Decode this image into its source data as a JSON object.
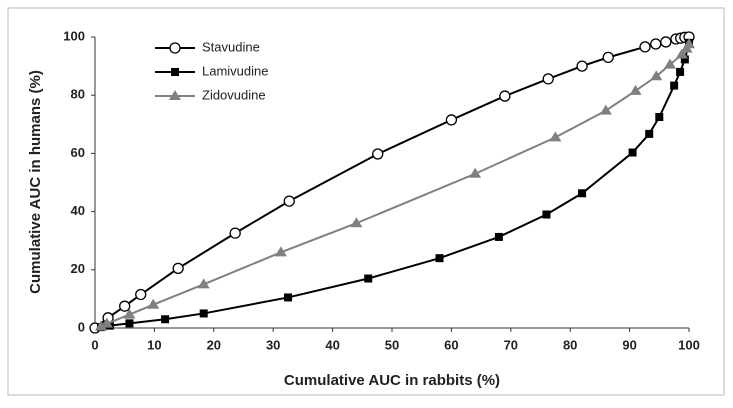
{
  "chart_data": {
    "type": "line",
    "xlabel": "Cumulative AUC in rabbits (%)",
    "ylabel": "Cumulative AUC in humans (%)",
    "xlim": [
      0,
      100
    ],
    "ylim": [
      0,
      100
    ],
    "xticks": [
      0,
      10,
      20,
      30,
      40,
      50,
      60,
      70,
      80,
      90,
      100
    ],
    "yticks": [
      0,
      20,
      40,
      60,
      80,
      100
    ],
    "series": [
      {
        "name": "Stavudine",
        "color": "#000000",
        "marker": "circle",
        "x": [
          0,
          2.2,
          5,
          7.7,
          14,
          23.6,
          32.7,
          47.6,
          60,
          69,
          76.3,
          82,
          86.4,
          92.6,
          94.4,
          96.1,
          97.8,
          98.6,
          99.3,
          100
        ],
        "values": [
          0,
          3.5,
          7.5,
          11.5,
          20.5,
          32.6,
          43.6,
          59.8,
          71.5,
          79.7,
          85.6,
          90,
          93,
          96.6,
          97.6,
          98.3,
          99.3,
          99.6,
          99.9,
          100
        ]
      },
      {
        "name": "Lamivudine",
        "color": "#000000",
        "marker": "square",
        "x": [
          1,
          2.5,
          5.8,
          11.8,
          18.3,
          32.5,
          46,
          58,
          68,
          76,
          82,
          90.5,
          93.3,
          95,
          97.5,
          98.5,
          99.3,
          100
        ],
        "values": [
          0.3,
          0.8,
          1.6,
          3,
          5,
          10.5,
          17,
          24,
          31.3,
          39,
          46.3,
          60.3,
          66.7,
          72.5,
          83.3,
          88,
          92.3,
          98
        ]
      },
      {
        "name": "Zidovudine",
        "color": "#808080",
        "marker": "triangle",
        "x": [
          1,
          2,
          5.8,
          9.8,
          18.3,
          31.3,
          44,
          64,
          77.5,
          86,
          91,
          94.5,
          96.8,
          98.8,
          99.6,
          100
        ],
        "values": [
          0.5,
          1.5,
          4.6,
          8,
          15,
          26,
          36,
          53,
          65.5,
          74.7,
          81.5,
          86.5,
          90.5,
          94,
          96,
          97.5
        ]
      }
    ]
  }
}
